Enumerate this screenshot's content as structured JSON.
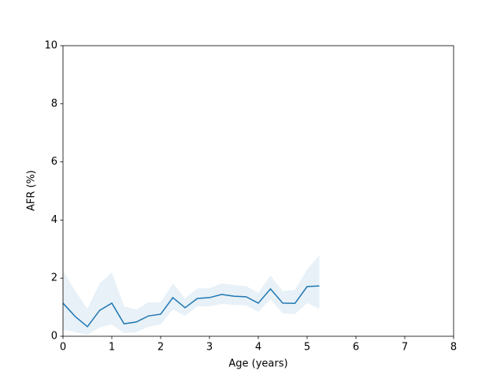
{
  "chart_data": {
    "type": "line",
    "xlabel": "Age (years)",
    "ylabel": "AFR (%)",
    "x": [
      0,
      0.25,
      0.5,
      0.75,
      1,
      1.25,
      1.5,
      1.75,
      2,
      2.25,
      2.5,
      2.75,
      3,
      3.25,
      3.5,
      3.75,
      4,
      4.25,
      4.5,
      4.75,
      5,
      5.25
    ],
    "values": [
      1.14,
      0.68,
      0.33,
      0.89,
      1.14,
      0.43,
      0.49,
      0.7,
      0.76,
      1.33,
      0.98,
      1.3,
      1.33,
      1.44,
      1.38,
      1.36,
      1.14,
      1.63,
      1.14,
      1.13,
      1.71,
      1.73
    ],
    "upper": [
      2.28,
      1.55,
      0.95,
      1.82,
      2.2,
      1.03,
      0.92,
      1.17,
      1.17,
      1.82,
      1.3,
      1.65,
      1.65,
      1.82,
      1.76,
      1.73,
      1.49,
      2.09,
      1.55,
      1.6,
      2.3,
      2.79
    ],
    "lower": [
      0.24,
      0.14,
      0.05,
      0.3,
      0.41,
      0.11,
      0.14,
      0.33,
      0.41,
      0.92,
      0.7,
      1.03,
      1.03,
      1.11,
      1.08,
      1.06,
      0.84,
      1.27,
      0.79,
      0.76,
      1.14,
      0.95
    ],
    "color": "#1f77b4",
    "xlim": [
      0,
      8
    ],
    "xticks": [
      0,
      1,
      2,
      3,
      4,
      5,
      6,
      7,
      8
    ],
    "ylim": [
      0,
      10
    ],
    "yticks": [
      0,
      2,
      4,
      6,
      8,
      10
    ],
    "grid": false
  }
}
